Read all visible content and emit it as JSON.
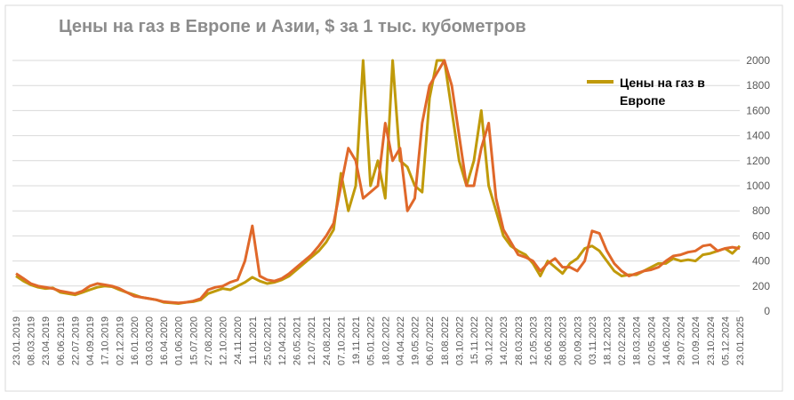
{
  "chart_data": {
    "type": "line",
    "title": "Цены на газ в Европе и Азии, $ за 1 тыс. кубометров",
    "categories": [
      "23.01.2019",
      null,
      "08.03.2019",
      null,
      "23.04.2019",
      null,
      "06.06.2019",
      null,
      "22.07.2019",
      null,
      "04.09.2019",
      null,
      "17.10.2019",
      null,
      "02.12.2019",
      null,
      "16.01.2020",
      null,
      "03.03.2020",
      null,
      "16.04.2020",
      null,
      "01.06.2020",
      null,
      "15.07.2020",
      null,
      "27.08.2020",
      null,
      "12.10.2020",
      null,
      "24.11.2020",
      null,
      "11.01.2021",
      null,
      "25.02.2021",
      null,
      "12.04.2021",
      null,
      "26.05.2021",
      null,
      "12.07.2021",
      null,
      "24.08.2021",
      null,
      "07.10.2021",
      null,
      "19.11.2021",
      null,
      "05.01.2022",
      null,
      "18.02.2022",
      null,
      "04.04.2022",
      null,
      "19.05.2022",
      null,
      "06.07.2022",
      null,
      "18.08.2022",
      null,
      "03.10.2022",
      null,
      "15.11.2022",
      null,
      "30.12.2022",
      null,
      "14.02.2023",
      null,
      "28.03.2023",
      null,
      "12.05.2023",
      null,
      "26.06.2023",
      null,
      "08.08.2023",
      null,
      "20.09.2023",
      null,
      "03.11.2023",
      null,
      "18.12.2023",
      null,
      "02.02.2024",
      null,
      "18.03.2024",
      null,
      "02.05.2024",
      null,
      "14.06.2024",
      null,
      "29.07.2024",
      null,
      "10.09.2024",
      null,
      "23.10.2024",
      null,
      "05.12.2024",
      null,
      "23.01.2025"
    ],
    "series": [
      {
        "name": "Цены на газ в Европе",
        "color": "#c09a0a",
        "values": [
          280,
          240,
          210,
          190,
          180,
          185,
          150,
          140,
          130,
          150,
          170,
          190,
          200,
          195,
          170,
          150,
          130,
          110,
          100,
          90,
          70,
          65,
          60,
          70,
          75,
          90,
          140,
          160,
          180,
          170,
          200,
          230,
          270,
          240,
          220,
          230,
          250,
          280,
          330,
          380,
          430,
          480,
          550,
          650,
          1100,
          800,
          1000,
          2000,
          1000,
          1200,
          900,
          2000,
          1200,
          1150,
          1000,
          950,
          1700,
          2000,
          2000,
          1600,
          1200,
          1000,
          1200,
          1600,
          1000,
          800,
          600,
          520,
          480,
          450,
          380,
          280,
          400,
          350,
          300,
          380,
          420,
          500,
          520,
          480,
          400,
          320,
          280,
          290,
          290,
          320,
          350,
          380,
          380,
          420,
          400,
          410,
          400,
          450,
          460,
          480,
          500,
          460,
          520
        ]
      },
      {
        "color": "#e0682a",
        "values": [
          300,
          260,
          220,
          200,
          190,
          180,
          160,
          150,
          140,
          160,
          200,
          220,
          210,
          200,
          180,
          150,
          120,
          110,
          100,
          90,
          75,
          70,
          65,
          70,
          80,
          100,
          170,
          190,
          200,
          230,
          250,
          400,
          680,
          280,
          250,
          240,
          260,
          300,
          350,
          400,
          450,
          520,
          600,
          700,
          1000,
          1300,
          1200,
          900,
          950,
          1000,
          1500,
          1200,
          1300,
          800,
          900,
          1500,
          1800,
          1900,
          2000,
          1800,
          1400,
          1000,
          1000,
          1300,
          1500,
          900,
          650,
          550,
          450,
          430,
          400,
          320,
          380,
          420,
          350,
          350,
          320,
          400,
          640,
          620,
          480,
          380,
          320,
          280,
          300,
          320,
          330,
          350,
          400,
          440,
          450,
          470,
          480,
          520,
          530,
          480,
          500,
          510,
          500
        ]
      }
    ],
    "ylim": [
      0,
      2000
    ],
    "yticks": [
      0,
      200,
      400,
      600,
      800,
      1000,
      1200,
      1400,
      1600,
      1800,
      2000
    ],
    "grid": true
  }
}
